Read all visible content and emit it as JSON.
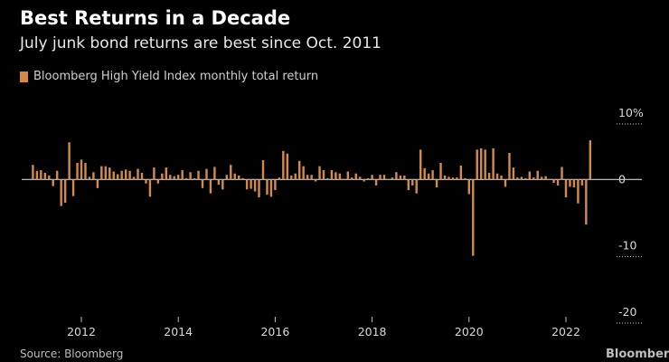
{
  "header": {
    "title": "Best Returns in a Decade",
    "subtitle": "July junk bond returns are best since Oct. 2011"
  },
  "legend": {
    "label": "Bloomberg High Yield Index monthly total return"
  },
  "footer": {
    "source": "Source: Bloomberg",
    "watermark": "Bloomberg"
  },
  "colors": {
    "bar": "#d38b4d",
    "zero_line": "#cfcfcf",
    "grid": "#ffffff",
    "background": "#000000"
  },
  "chart_data": {
    "type": "bar",
    "title": "Best Returns in a Decade",
    "subtitle": "July junk bond returns are best since Oct. 2011",
    "legend": [
      "Bloomberg High Yield Index monthly total return"
    ],
    "x_start": "2011-01",
    "x_end": "2022-07",
    "x_ticks": [
      "2012",
      "2014",
      "2016",
      "2018",
      "2020",
      "2022"
    ],
    "y_ticks": [
      10,
      0,
      -10,
      -20
    ],
    "y_tick_labels": [
      "10%",
      "0",
      "-10",
      "-20"
    ],
    "ylim": [
      -20,
      10
    ],
    "xlabel": "",
    "ylabel": "",
    "series": [
      {
        "name": "Bloomberg High Yield Index monthly total return",
        "values": [
          2.2,
          1.3,
          1.4,
          1.0,
          0.6,
          -1.0,
          1.3,
          -4.0,
          -3.5,
          5.6,
          -2.5,
          2.5,
          3.0,
          2.5,
          0.4,
          1.1,
          -1.3,
          2.0,
          2.0,
          1.8,
          1.2,
          0.8,
          1.3,
          1.5,
          1.3,
          0.4,
          1.6,
          1.0,
          -0.6,
          -2.6,
          1.8,
          -0.6,
          0.9,
          1.8,
          0.7,
          0.5,
          0.7,
          1.4,
          0.2,
          1.1,
          0.2,
          1.3,
          -1.3,
          1.6,
          -2.1,
          1.9,
          -0.8,
          -1.5,
          0.7,
          2.2,
          0.9,
          0.6,
          0.2,
          -1.5,
          -1.4,
          -1.8,
          -2.7,
          2.9,
          -2.3,
          -2.6,
          -1.6,
          0.3,
          4.3,
          3.9,
          0.6,
          0.9,
          2.8,
          2.0,
          0.7,
          0.7,
          -0.3,
          2.0,
          1.4,
          0.2,
          1.4,
          1.1,
          0.9,
          0.1,
          1.2,
          0.3,
          0.9,
          0.4,
          -0.3,
          0.2,
          0.7,
          -0.9,
          0.7,
          0.7,
          -0.1,
          0.3,
          1.1,
          0.6,
          0.6,
          -1.6,
          -0.9,
          -2.1,
          4.5,
          1.7,
          0.9,
          1.4,
          -1.2,
          2.5,
          0.6,
          0.4,
          0.3,
          0.3,
          2.1,
          0.2,
          -2.2,
          -11.5,
          4.5,
          4.7,
          4.5,
          1.0,
          4.7,
          0.9,
          0.6,
          -1.1,
          4.0,
          1.8,
          0.3,
          0.4,
          0.2,
          1.2,
          0.3,
          1.3,
          0.4,
          0.5,
          -0.1,
          -0.5,
          -0.9,
          1.9,
          -2.7,
          -1.1,
          -1.2,
          -3.6,
          -0.9,
          -6.8,
          5.9
        ]
      }
    ]
  }
}
